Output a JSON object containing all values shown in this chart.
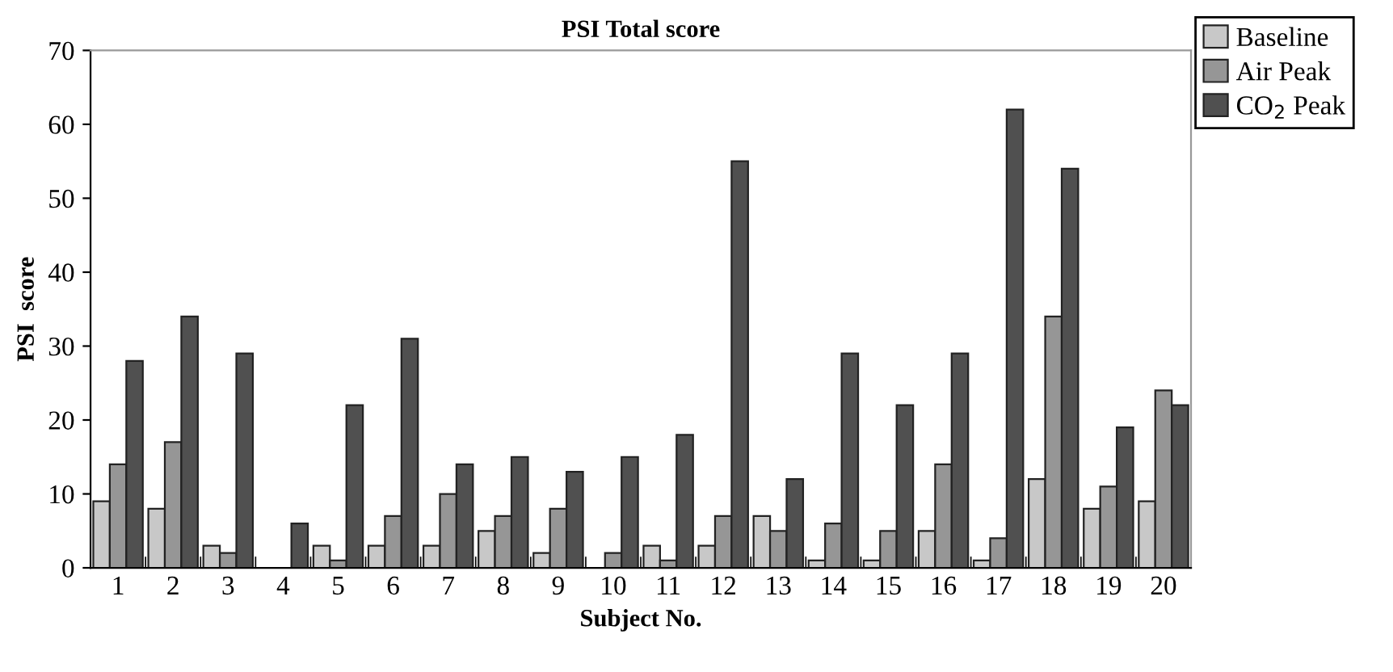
{
  "chart_data": {
    "type": "bar",
    "title": "PSI Total score",
    "xlabel": "Subject No.",
    "ylabel": "PSI  score",
    "categories": [
      "1",
      "2",
      "3",
      "4",
      "5",
      "6",
      "7",
      "8",
      "9",
      "10",
      "11",
      "12",
      "13",
      "14",
      "15",
      "16",
      "17",
      "18",
      "19",
      "20"
    ],
    "series": [
      {
        "name": "Baseline",
        "color": "#c8c8c8",
        "values": [
          9,
          8,
          3,
          0,
          3,
          3,
          3,
          5,
          2,
          0,
          3,
          3,
          7,
          1,
          1,
          5,
          1,
          12,
          8,
          9
        ]
      },
      {
        "name": "Air Peak",
        "color": "#969696",
        "values": [
          14,
          17,
          2,
          0,
          1,
          7,
          10,
          7,
          8,
          2,
          1,
          7,
          5,
          6,
          5,
          14,
          4,
          34,
          11,
          24
        ]
      },
      {
        "name": "CO$_{2}$ Peak",
        "color": "#505050",
        "values": [
          28,
          34,
          29,
          6,
          22,
          31,
          14,
          15,
          13,
          15,
          18,
          55,
          12,
          29,
          22,
          29,
          62,
          54,
          19,
          22
        ]
      }
    ],
    "ylim": [
      0,
      70
    ],
    "yticks": [
      0,
      10,
      20,
      30,
      40,
      50,
      60,
      70
    ],
    "grid": false,
    "legend": "top right"
  }
}
